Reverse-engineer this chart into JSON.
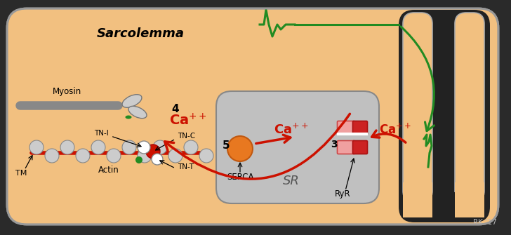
{
  "bg_outer": "#2a2a2a",
  "bg_cell": "#f2c080",
  "bg_sr": "#c0c0c0",
  "sarcolemma_text": "Sarcolemma",
  "red": "#cc1100",
  "green": "#228B22",
  "black": "#000000",
  "gray_line": "#888888",
  "cell_border": "#aaaaaa",
  "rk_text": "RK ’17",
  "sr_label": "SR",
  "serca_label": "SERCA",
  "ryr_label": "RyR",
  "myosin_label": "Myosin",
  "actin_label": "Actin",
  "tm_label": "TM",
  "tni_label": "TN-I",
  "tnc_label": "TN-C",
  "tnt_label": "TN-T"
}
